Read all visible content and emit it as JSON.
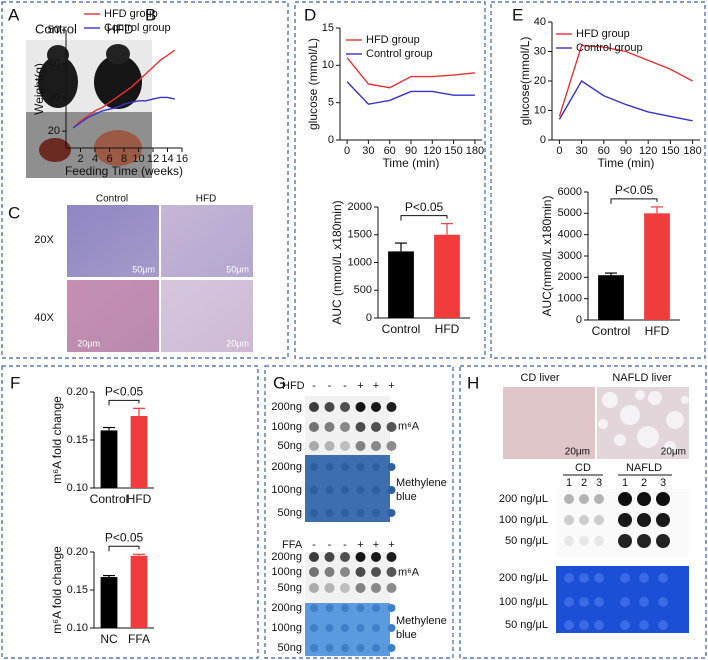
{
  "panel_labels": [
    "A",
    "B",
    "C",
    "D",
    "E",
    "F",
    "G",
    "H"
  ],
  "panel_a": {
    "columns": [
      "Control",
      "HFD"
    ]
  },
  "panel_c": {
    "columns": [
      "Control",
      "HFD"
    ],
    "rows": [
      "20X",
      "40X"
    ],
    "scale_bars": [
      "50μm",
      "50μm",
      "20μm",
      "20μm"
    ]
  },
  "panel_g": {
    "blots": [
      {
        "group": "HFD",
        "treatment": [
          "-",
          "-",
          "-",
          "+",
          "+",
          "+"
        ],
        "amounts": [
          "200ng",
          "100ng",
          "50ng"
        ],
        "stain": "m⁶A",
        "loading_amounts": [
          "200ng",
          "100ng",
          "50ng"
        ],
        "loading_stain": "Methylene blue"
      },
      {
        "group": "FFA",
        "treatment": [
          "-",
          "-",
          "-",
          "+",
          "+",
          "+"
        ],
        "amounts": [
          "200ng",
          "100ng",
          "50ng"
        ],
        "stain": "m⁶A",
        "loading_amounts": [
          "200ng",
          "100ng",
          "50ng"
        ],
        "loading_stain": "Methylene blue"
      }
    ]
  },
  "panel_h": {
    "images": [
      "CD liver",
      "NAFLD liver"
    ],
    "scale_bars": [
      "20μm",
      "20μm"
    ],
    "groups": [
      "CD",
      "NAFLD"
    ],
    "lanes": [
      "1",
      "2",
      "3",
      "1",
      "2",
      "3"
    ],
    "amounts": [
      "200 ng/μL",
      "100 ng/μL",
      "50 ng/μL"
    ],
    "loading_amounts": [
      "200 ng/μL",
      "100 ng/μL",
      "50 ng/μL"
    ]
  },
  "chart_data": [
    {
      "type": "line",
      "xlabel": "Feeding Time (weeks)",
      "ylabel": "Weight(g)",
      "x": [
        1,
        2,
        3,
        4,
        5,
        6,
        7,
        8,
        9,
        10,
        11,
        12,
        13,
        14,
        15
      ],
      "series": [
        {
          "name": "HFD group",
          "color": "#e8312f",
          "values": [
            21,
            23,
            24.5,
            26,
            27,
            28.5,
            30,
            31.5,
            33,
            35,
            37,
            39,
            41,
            42.5,
            44
          ]
        },
        {
          "name": "Control group",
          "color": "#3434c8",
          "values": [
            21,
            22.5,
            24,
            25,
            26,
            26.5,
            27,
            28,
            28.5,
            29,
            29,
            29.5,
            30,
            30,
            29.5
          ]
        }
      ],
      "xlim": [
        0,
        16
      ],
      "xticks": [
        2,
        4,
        6,
        8,
        10,
        12,
        14,
        16
      ],
      "ylim": [
        15,
        50
      ],
      "yticks": [
        20,
        30,
        40,
        50
      ]
    },
    {
      "type": "line",
      "xlabel": "Time (min)",
      "ylabel": "glucose (mmol/L)",
      "x": [
        0,
        30,
        60,
        90,
        120,
        150,
        180
      ],
      "series": [
        {
          "name": "HFD group",
          "color": "#e8312f",
          "values": [
            11,
            7.5,
            7,
            8.5,
            8.5,
            8.7,
            9
          ]
        },
        {
          "name": "Control group",
          "color": "#3434c8",
          "values": [
            7.8,
            4.8,
            5.3,
            6.5,
            6.5,
            6,
            6
          ]
        }
      ],
      "xlim": [
        -10,
        190
      ],
      "xticks": [
        0,
        30,
        60,
        90,
        120,
        150,
        180
      ],
      "ylim": [
        0,
        15
      ],
      "yticks": [
        0,
        5,
        10,
        15
      ]
    },
    {
      "type": "bar",
      "ylabel": "AUC (mmol/L x180min)",
      "categories": [
        "Control",
        "HFD"
      ],
      "values": [
        1200,
        1500
      ],
      "errors": [
        150,
        200
      ],
      "colors": [
        "#000000",
        "#f03c3c"
      ],
      "ylim": [
        0,
        2000
      ],
      "yticks": [
        0,
        500,
        1000,
        1500,
        2000
      ],
      "annotation": "P<0.05"
    },
    {
      "type": "line",
      "xlabel": "Time (min)",
      "ylabel": "glucose(mmol/L)",
      "x": [
        0,
        30,
        60,
        90,
        120,
        150,
        180
      ],
      "series": [
        {
          "name": "HFD group",
          "color": "#e8312f",
          "values": [
            8,
            32,
            31.5,
            30,
            27,
            24,
            20
          ]
        },
        {
          "name": "Control group",
          "color": "#3434c8",
          "values": [
            7,
            20,
            15,
            12,
            9.5,
            8,
            6.5
          ]
        }
      ],
      "xlim": [
        -10,
        190
      ],
      "xticks": [
        0,
        30,
        60,
        90,
        120,
        150,
        180
      ],
      "ylim": [
        0,
        40
      ],
      "yticks": [
        0,
        10,
        20,
        30,
        40
      ]
    },
    {
      "type": "bar",
      "ylabel": "AUC(mmol/L x180min)",
      "categories": [
        "Control",
        "HFD"
      ],
      "values": [
        2100,
        5000
      ],
      "errors": [
        100,
        300
      ],
      "colors": [
        "#000000",
        "#f03c3c"
      ],
      "ylim": [
        0,
        6000
      ],
      "yticks": [
        0,
        1000,
        2000,
        3000,
        4000,
        5000,
        6000
      ],
      "annotation": "P<0.05"
    },
    {
      "type": "bar",
      "ylabel": "m⁶A fold change",
      "categories": [
        "Control",
        "HFD"
      ],
      "values": [
        0.16,
        0.175
      ],
      "errors": [
        0.003,
        0.008
      ],
      "colors": [
        "#000000",
        "#f03c3c"
      ],
      "ylim": [
        0.1,
        0.2
      ],
      "yticks": [
        {
          "value": 0.1,
          "label": "0.10"
        },
        0.15,
        {
          "value": 0.2,
          "label": "0.20"
        }
      ],
      "annotation": "P<0.05"
    },
    {
      "type": "bar",
      "ylabel": "m⁶A fold change",
      "categories": [
        "NC",
        "FFA"
      ],
      "values": [
        0.167,
        0.195
      ],
      "errors": [
        0.002,
        0.002
      ],
      "colors": [
        "#000000",
        "#f03c3c"
      ],
      "ylim": [
        0.1,
        0.2
      ],
      "yticks": [
        {
          "value": 0.1,
          "label": "0.10"
        },
        0.15,
        {
          "value": 0.2,
          "label": "0.20"
        }
      ],
      "annotation": "P<0.05"
    }
  ]
}
